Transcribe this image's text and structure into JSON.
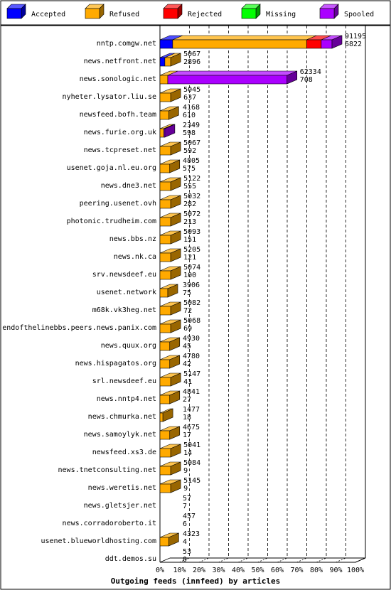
{
  "chart_data": {
    "type": "bar",
    "stacked": true,
    "orientation": "horizontal",
    "title": "Outgoing feeds (innfeed) by articles",
    "xlim": [
      0,
      100
    ],
    "x_ticks": [
      "0%",
      "10%",
      "20%",
      "30%",
      "40%",
      "50%",
      "60%",
      "70%",
      "80%",
      "90%",
      "100%"
    ],
    "grid": true,
    "legend_position": "top",
    "series": [
      {
        "name": "Accepted",
        "color": "#0000ff"
      },
      {
        "name": "Refused",
        "color": "#ffaa00"
      },
      {
        "name": "Rejected",
        "color": "#ff0000"
      },
      {
        "name": "Missing",
        "color": "#00ff00"
      },
      {
        "name": "Spooled",
        "color": "#aa00ff"
      }
    ],
    "rows": [
      {
        "label": "nntp.comgw.net",
        "top": "91195",
        "bottom": "6822",
        "segments": [
          6.5,
          68.5,
          7.5,
          0,
          5.5
        ]
      },
      {
        "label": "news.netfront.net",
        "top": "5067",
        "bottom": "2896",
        "segments": [
          2.5,
          3.0,
          0,
          0,
          0
        ]
      },
      {
        "label": "news.sonologic.net",
        "top": "62334",
        "bottom": "708",
        "segments": [
          0,
          4.0,
          0,
          0,
          61.0
        ]
      },
      {
        "label": "nyheter.lysator.liu.se",
        "top": "5045",
        "bottom": "637",
        "segments": [
          0,
          5.5,
          0,
          0,
          0.0
        ]
      },
      {
        "label": "newsfeed.bofh.team",
        "top": "4168",
        "bottom": "610",
        "segments": [
          0,
          4.5,
          0,
          0,
          0.0
        ]
      },
      {
        "label": "news.furie.org.uk",
        "top": "2349",
        "bottom": "598",
        "segments": [
          0,
          2.0,
          0,
          0,
          0.5
        ]
      },
      {
        "label": "news.tcpreset.net",
        "top": "5067",
        "bottom": "592",
        "segments": [
          0,
          5.5,
          0,
          0,
          0.0
        ]
      },
      {
        "label": "usenet.goja.nl.eu.org",
        "top": "4805",
        "bottom": "575",
        "segments": [
          0,
          5.0,
          0,
          0,
          0.0
        ]
      },
      {
        "label": "news.dne3.net",
        "top": "5122",
        "bottom": "555",
        "segments": [
          0,
          5.5,
          0,
          0,
          0.0
        ]
      },
      {
        "label": "peering.usenet.ovh",
        "top": "5032",
        "bottom": "282",
        "segments": [
          0,
          5.5,
          0.0,
          0,
          0
        ]
      },
      {
        "label": "photonic.trudheim.com",
        "top": "5072",
        "bottom": "213",
        "segments": [
          0,
          5.5,
          0,
          0,
          0.0
        ]
      },
      {
        "label": "news.bbs.nz",
        "top": "5093",
        "bottom": "151",
        "segments": [
          0,
          5.5,
          0,
          0,
          0.0
        ]
      },
      {
        "label": "news.nk.ca",
        "top": "5205",
        "bottom": "121",
        "segments": [
          0,
          5.5,
          0,
          0,
          0.0
        ]
      },
      {
        "label": "srv.newsdeef.eu",
        "top": "5074",
        "bottom": "100",
        "segments": [
          0,
          5.5,
          0,
          0,
          0.0
        ]
      },
      {
        "label": "usenet.network",
        "top": "3906",
        "bottom": "75",
        "segments": [
          0,
          4.0,
          0,
          0,
          0
        ]
      },
      {
        "label": "m68k.vk3heg.net",
        "top": "5082",
        "bottom": "72",
        "segments": [
          0,
          5.5,
          0,
          0,
          0.0
        ]
      },
      {
        "label": "endofthelinebbs.peers.news.panix.com",
        "top": "5068",
        "bottom": "69",
        "segments": [
          0,
          5.5,
          0.0,
          0,
          0
        ]
      },
      {
        "label": "news.quux.org",
        "top": "4930",
        "bottom": "45",
        "segments": [
          0,
          5.0,
          0.0,
          0,
          0
        ]
      },
      {
        "label": "news.hispagatos.org",
        "top": "4780",
        "bottom": "42",
        "segments": [
          0,
          5.0,
          0.0,
          0,
          0
        ]
      },
      {
        "label": "srl.newsdeef.eu",
        "top": "5147",
        "bottom": "41",
        "segments": [
          0,
          5.5,
          0,
          0,
          0.0
        ]
      },
      {
        "label": "news.nntp4.net",
        "top": "4841",
        "bottom": "27",
        "segments": [
          0,
          5.0,
          0,
          0,
          0.0
        ]
      },
      {
        "label": "news.chmurka.net",
        "top": "1477",
        "bottom": "18",
        "segments": [
          0,
          1.5,
          0,
          0,
          0
        ]
      },
      {
        "label": "news.samoylyk.net",
        "top": "4675",
        "bottom": "17",
        "segments": [
          0,
          5.0,
          0.0,
          0,
          0
        ]
      },
      {
        "label": "newsfeed.xs3.de",
        "top": "5041",
        "bottom": "14",
        "segments": [
          0,
          5.5,
          0,
          0,
          0.0
        ]
      },
      {
        "label": "news.tnetconsulting.net",
        "top": "5084",
        "bottom": "9",
        "segments": [
          0,
          5.5,
          0,
          0,
          0.0
        ]
      },
      {
        "label": "news.weretis.net",
        "top": "5145",
        "bottom": "9",
        "segments": [
          0,
          5.5,
          0,
          0,
          0.0
        ]
      },
      {
        "label": "news.gletsjer.net",
        "top": "57",
        "bottom": "7",
        "segments": [
          0,
          0.0,
          0,
          0,
          0
        ]
      },
      {
        "label": "news.corradoroberto.it",
        "top": "457",
        "bottom": "6",
        "segments": [
          0,
          0.0,
          0,
          0,
          0.0
        ]
      },
      {
        "label": "usenet.blueworldhosting.com",
        "top": "4323",
        "bottom": "4",
        "segments": [
          0,
          4.5,
          0.0,
          0,
          0
        ]
      },
      {
        "label": "ddt.demos.su",
        "top": "53",
        "bottom": "0",
        "segments": [
          0,
          0.0,
          0,
          0,
          0
        ]
      }
    ]
  }
}
